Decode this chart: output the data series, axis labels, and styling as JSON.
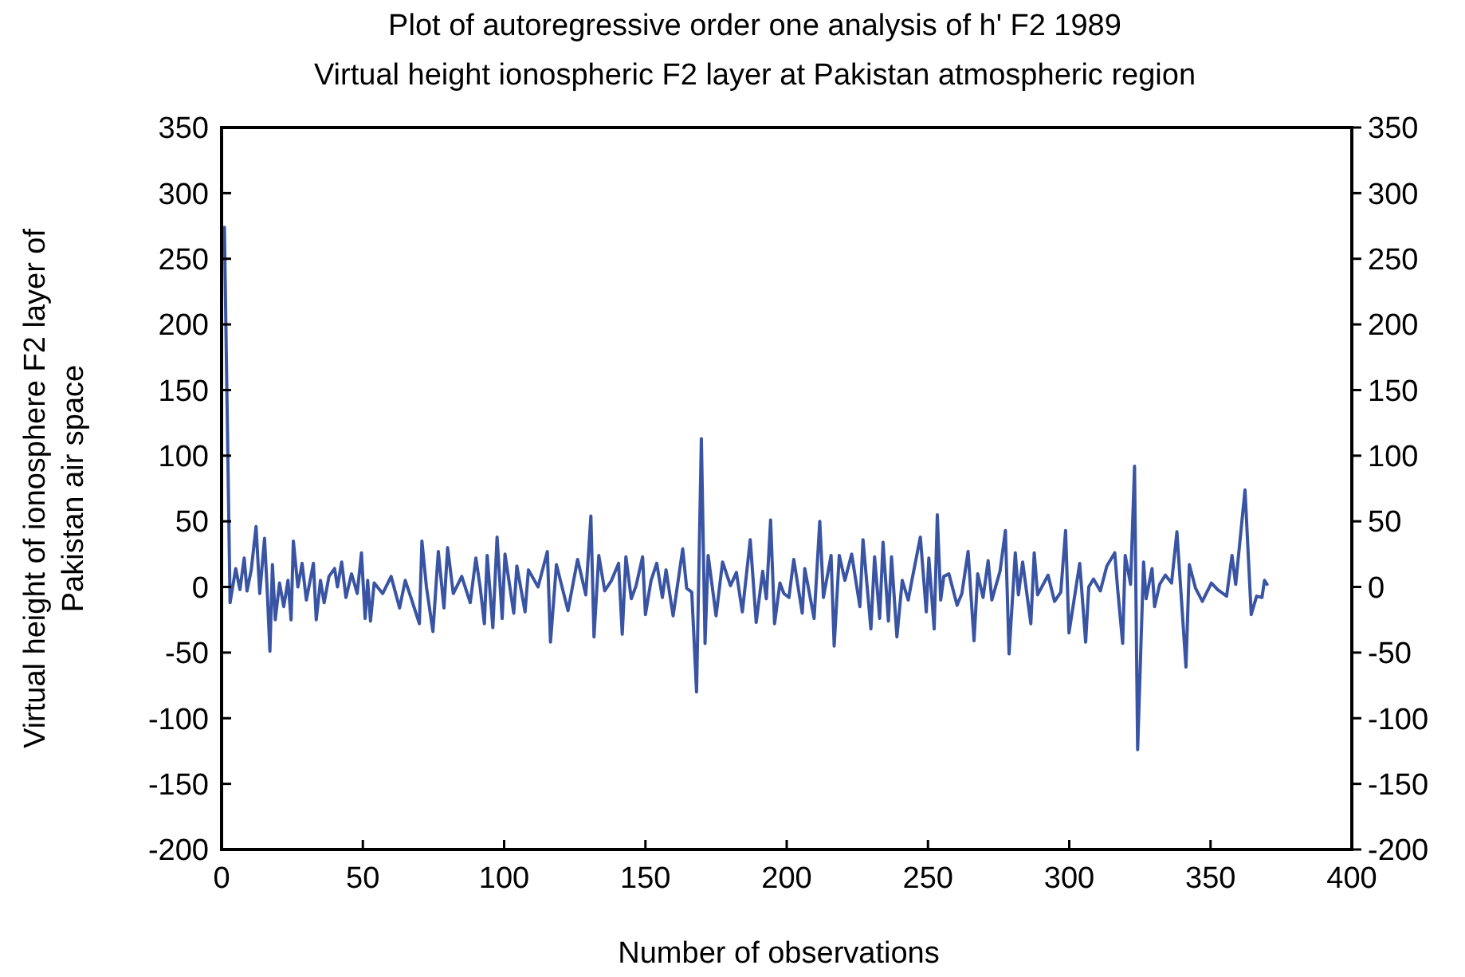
{
  "chart_data": {
    "type": "line",
    "title": "Plot of autoregressive order one analysis of  h' F2 1989",
    "subtitle": "Virtual height ionospheric F2 layer at Pakistan  atmospheric region",
    "xlabel": "Number of observations",
    "ylabel": "Virtual height of ionosphere F2 layer of\nPakistan air space",
    "xlim": [
      0,
      400
    ],
    "xticks": [
      0,
      50,
      100,
      150,
      200,
      250,
      300,
      350,
      400
    ],
    "ylim": [
      -200,
      350
    ],
    "yticks": [
      -200,
      -150,
      -100,
      -50,
      0,
      50,
      100,
      150,
      200,
      250,
      300,
      350
    ],
    "y2lim": [
      -200,
      350
    ],
    "y2ticks": [
      -200,
      -150,
      -100,
      -50,
      0,
      50,
      100,
      150,
      200,
      250,
      300,
      350
    ],
    "grid": false,
    "marker": "none",
    "line_style": "solid",
    "series": [
      {
        "color": "#3a54a4",
        "x": [
          1,
          3,
          5,
          6.5,
          8,
          9,
          10.5,
          12.2,
          13.5,
          15.2,
          16.2,
          17.1,
          18,
          19,
          20.5,
          22,
          23.5,
          24.6,
          25.4,
          27,
          28.5,
          30,
          32.5,
          33.5,
          35,
          36.3,
          38,
          40,
          41,
          42.5,
          44,
          46,
          48,
          49.5,
          50.8,
          51.7,
          52.7,
          54,
          57,
          60,
          63,
          65,
          67,
          70,
          70.9,
          72.5,
          74.8,
          76.7,
          78.7,
          80,
          82,
          85,
          88,
          90,
          91.5,
          93,
          94,
          96,
          97.5,
          99.3,
          100.3,
          103.4,
          104.5,
          107.4,
          108.6,
          112,
          115.3,
          116.4,
          118.5,
          122.6,
          126,
          128.9,
          130.7,
          131.8,
          133.5,
          135.6,
          138,
          140.5,
          141.8,
          143.1,
          145,
          146.7,
          149,
          150,
          152,
          154,
          156,
          157.3,
          159.8,
          163.2,
          164.6,
          166.4,
          168.1,
          169.8,
          171.1,
          172.2,
          175,
          177.3,
          180.1,
          182.2,
          184.3,
          187.1,
          189.2,
          191.5,
          192.8,
          194.3,
          195.7,
          197.6,
          199,
          200.8,
          202.5,
          205.5,
          206.4,
          209.7,
          211.7,
          213,
          215.7,
          216.8,
          218.6,
          220.6,
          223,
          225.9,
          227,
          229.8,
          231.1,
          232.9,
          234.1,
          236,
          237.1,
          239,
          240.9,
          243,
          244.3,
          247.3,
          249.4,
          250.3,
          252.2,
          253.3,
          254.5,
          255.6,
          257.4,
          260.3,
          262,
          264.2,
          266.3,
          267.6,
          269.5,
          271.3,
          272.6,
          275.5,
          277.4,
          278.7,
          280.9,
          282,
          283.5,
          286.4,
          287.6,
          288.8,
          292.5,
          294.8,
          297,
          298.7,
          299.9,
          303.7,
          305.8,
          306.9,
          308.6,
          311,
          313.3,
          316.1,
          317.1,
          318.9,
          319.8,
          321.7,
          323.1,
          324.2,
          326.3,
          327.2,
          329.3,
          330.2,
          332,
          334,
          336.2,
          338.1,
          341.3,
          342.5,
          344.7,
          347.1,
          350.3,
          352.5,
          355.7,
          357.6,
          358.9,
          362.2,
          364.4,
          366.3,
          368.2,
          369.1,
          370
        ],
        "values": [
          274,
          -12,
          14,
          -2,
          22,
          -3,
          13,
          46,
          -5,
          37,
          -5,
          -49,
          17,
          -25,
          3,
          -15,
          5,
          -25,
          35,
          0,
          18,
          -10,
          18,
          -25,
          5,
          -12,
          8,
          14,
          0,
          19,
          -8,
          10,
          -5,
          26,
          -24,
          5,
          -26,
          3,
          -5,
          8,
          -16,
          5,
          -8,
          -28,
          35,
          0,
          -34,
          27,
          -16,
          30,
          -5,
          8,
          -12,
          22,
          0,
          -28,
          24,
          -31,
          38,
          -24,
          25,
          -20,
          16,
          -19,
          13,
          0,
          27,
          -42,
          17,
          -18,
          21,
          -6,
          54,
          -38,
          24,
          -3,
          5,
          18,
          -36,
          23,
          -9,
          1,
          23,
          -21,
          5,
          18,
          -8,
          13,
          -22,
          29,
          -1,
          -4,
          -80,
          113,
          -43,
          24,
          -22,
          19,
          1,
          11,
          -19,
          36,
          -27,
          12,
          -9,
          51,
          -28,
          3,
          -5,
          -8,
          21,
          -20,
          14,
          -24,
          50,
          -8,
          24,
          -45,
          24,
          5,
          25,
          -15,
          36,
          -32,
          23,
          -24,
          34,
          -26,
          23,
          -38,
          5,
          -10,
          5,
          38,
          -19,
          22,
          -32,
          55,
          -10,
          8,
          10,
          -14,
          -5,
          27,
          -41,
          10,
          -8,
          20,
          -10,
          12,
          43,
          -51,
          26,
          -6,
          19,
          -28,
          26,
          -6,
          9,
          -11,
          -4,
          43,
          -35,
          18,
          -42,
          0,
          6,
          -3,
          16,
          26,
          -1,
          -43,
          24,
          2,
          92,
          -124,
          19,
          -9,
          14,
          -15,
          2,
          9,
          3,
          42,
          -61,
          17,
          -1,
          -11,
          3,
          -2,
          -7,
          24,
          2,
          74,
          -21,
          -7,
          -8,
          5,
          2
        ]
      }
    ]
  }
}
